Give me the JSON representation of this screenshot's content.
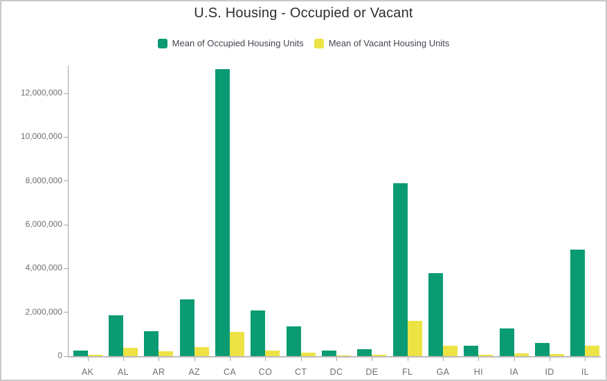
{
  "chart_data": {
    "type": "bar",
    "title": "U.S. Housing - Occupied or Vacant",
    "categories": [
      "AK",
      "AL",
      "AR",
      "AZ",
      "CA",
      "CO",
      "CT",
      "DC",
      "DE",
      "FL",
      "GA",
      "HI",
      "IA",
      "ID",
      "IL"
    ],
    "series": [
      {
        "name": "Mean of Occupied Housing Units",
        "color": "#0a9b73",
        "values": [
          240000,
          1850000,
          1150000,
          2600000,
          13100000,
          2100000,
          1350000,
          260000,
          330000,
          7900000,
          3800000,
          460000,
          1250000,
          610000,
          4850000
        ]
      },
      {
        "name": "Mean of Vacant Housing Units",
        "color": "#ede345",
        "values": [
          50000,
          390000,
          210000,
          410000,
          1100000,
          240000,
          150000,
          25000,
          60000,
          1620000,
          480000,
          75000,
          135000,
          85000,
          470000
        ]
      }
    ],
    "xlabel": "",
    "ylabel": "",
    "ylim": [
      0,
      13270000
    ],
    "ytick_step": 2000000,
    "ytick_labels": [
      "0",
      "2,000,000",
      "4,000,000",
      "6,000,000",
      "8,000,000",
      "10,000,000",
      "12,000,000"
    ],
    "grid": "off",
    "legend_position": "top"
  },
  "colors": {
    "frame_border": "#c9c9c9",
    "axis_line": "#a5a5a5",
    "baseline": "#bcbcbc",
    "tick_label": "#6f6f6f",
    "title_text": "#2d2d2d",
    "legend_text": "#45434e"
  }
}
